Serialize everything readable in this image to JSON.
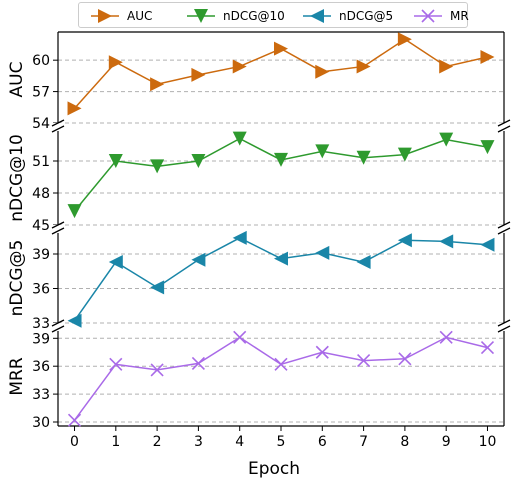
{
  "chart_data": {
    "type": "line",
    "xlabel": "Epoch",
    "x": [
      0,
      1,
      2,
      3,
      4,
      5,
      6,
      7,
      8,
      9,
      10
    ],
    "x_ticks": [
      "0",
      "1",
      "2",
      "3",
      "4",
      "5",
      "6",
      "7",
      "8",
      "9",
      "10"
    ],
    "legend": {
      "position": "top-center"
    },
    "series": [
      {
        "name": "AUC",
        "ylabel": "AUC",
        "color": "#cc6a0e",
        "marker": "triangle-right",
        "values": [
          55.4,
          59.8,
          57.7,
          58.6,
          59.4,
          61.1,
          58.9,
          59.4,
          62.0,
          59.4,
          60.3
        ],
        "ylim": [
          54,
          62.5
        ],
        "yticks": [
          54,
          57,
          60
        ]
      },
      {
        "name": "nDCG@10",
        "ylabel": "nDCG@10",
        "color": "#2e9a2e",
        "marker": "triangle-down",
        "values": [
          46.3,
          51.0,
          50.5,
          51.0,
          53.1,
          51.1,
          51.9,
          51.3,
          51.6,
          53.0,
          52.3
        ],
        "ylim": [
          45,
          54
        ],
        "yticks": [
          45,
          48,
          51
        ]
      },
      {
        "name": "nDCG@5",
        "ylabel": "nDCG@5",
        "color": "#1a86a8",
        "marker": "triangle-left",
        "values": [
          33.2,
          38.3,
          36.1,
          38.5,
          40.4,
          38.6,
          39.1,
          38.3,
          40.2,
          40.1,
          39.8
        ],
        "ylim": [
          33,
          41
        ],
        "yticks": [
          33,
          36,
          39
        ]
      },
      {
        "name": "MRR",
        "ylabel": "MRR",
        "color": "#a96ae8",
        "marker": "x",
        "values": [
          30.2,
          36.2,
          35.6,
          36.3,
          39.1,
          36.2,
          37.5,
          36.6,
          36.8,
          39.1,
          38.0
        ],
        "ylim": [
          30,
          40
        ],
        "yticks": [
          30,
          33,
          36,
          39
        ]
      }
    ],
    "grid": {
      "y": "dashed",
      "x": false
    }
  }
}
